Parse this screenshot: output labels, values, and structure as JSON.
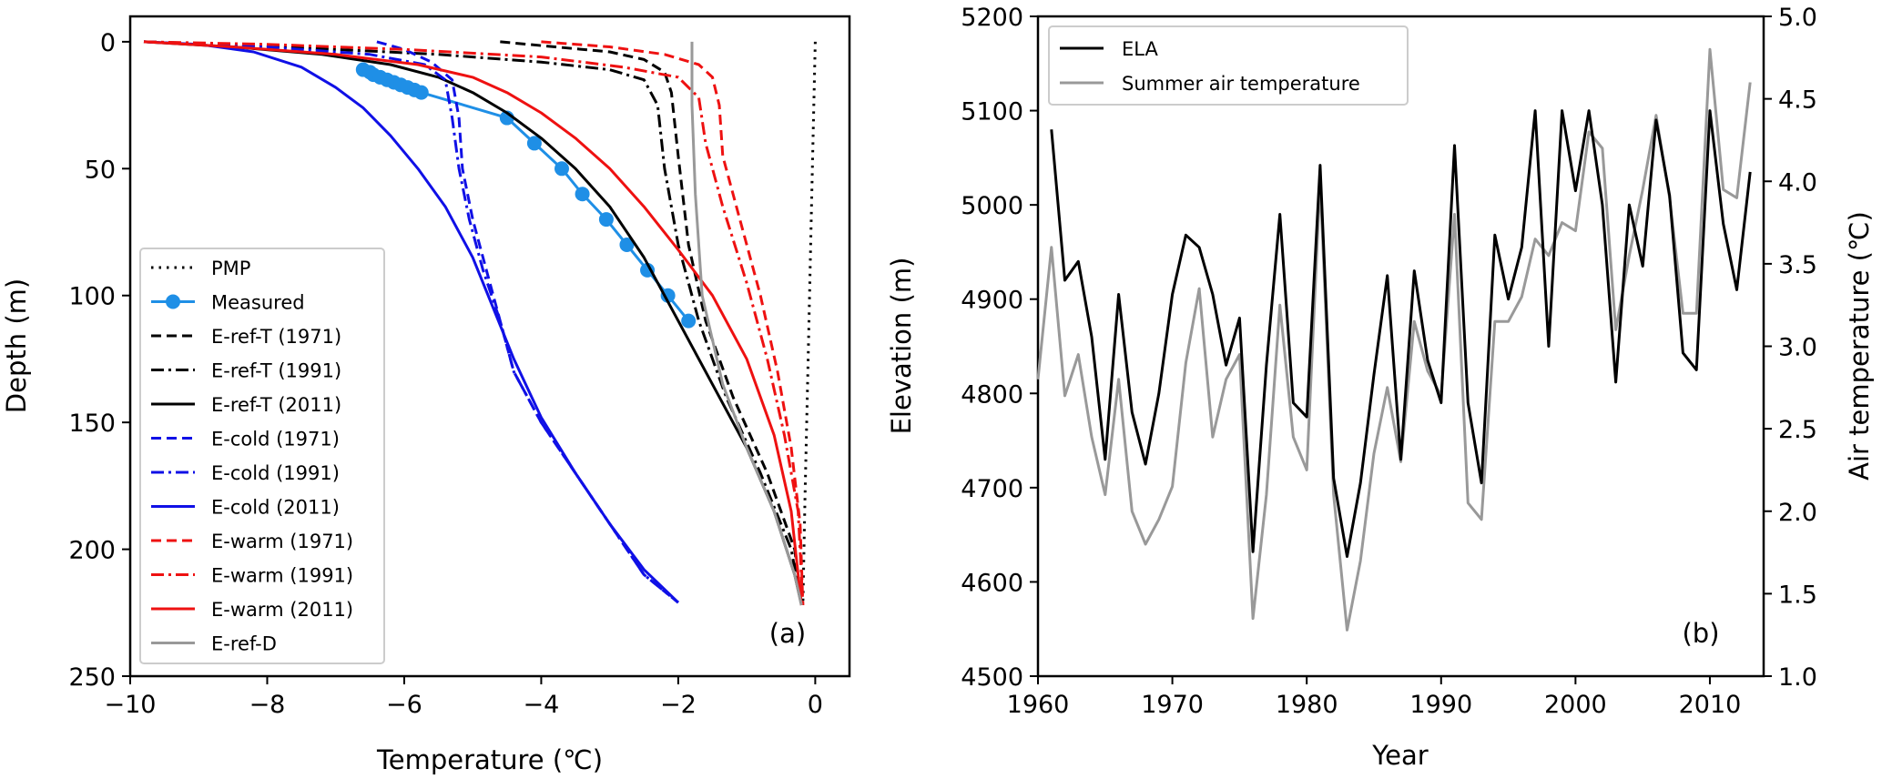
{
  "chart_data": [
    {
      "type": "line",
      "panel_label": "(a)",
      "xlabel": "Temperature (℃)",
      "ylabel": "Depth (m)",
      "xlim": [
        -10,
        0.5
      ],
      "ylim": [
        250,
        -10
      ],
      "xticks": [
        -10,
        -8,
        -6,
        -4,
        -2,
        0
      ],
      "xtick_labels": [
        "−10",
        "−8",
        "−6",
        "−4",
        "−2",
        "0"
      ],
      "yticks": [
        0,
        50,
        100,
        150,
        200,
        250
      ],
      "ytick_labels": [
        "0",
        "50",
        "100",
        "150",
        "200",
        "250"
      ],
      "legend_position": "lower-left",
      "series": [
        {
          "name": "PMP",
          "color": "#000000",
          "dash": "dotted",
          "marker": false,
          "points": [
            [
              0.0,
              0
            ],
            [
              -0.05,
              60
            ],
            [
              -0.1,
              120
            ],
            [
              -0.15,
              180
            ],
            [
              -0.18,
              222
            ]
          ]
        },
        {
          "name": "Measured",
          "color": "#1f8fe6",
          "dash": "solid",
          "marker": true,
          "points": [
            [
              -6.6,
              11
            ],
            [
              -6.5,
              12
            ],
            [
              -6.45,
              13
            ],
            [
              -6.35,
              14
            ],
            [
              -6.25,
              15
            ],
            [
              -6.15,
              16
            ],
            [
              -6.05,
              17
            ],
            [
              -5.95,
              18
            ],
            [
              -5.85,
              19
            ],
            [
              -5.75,
              20
            ],
            [
              -4.5,
              30
            ],
            [
              -4.1,
              40
            ],
            [
              -3.7,
              50
            ],
            [
              -3.4,
              60
            ],
            [
              -3.05,
              70
            ],
            [
              -2.75,
              80
            ],
            [
              -2.45,
              90
            ],
            [
              -2.15,
              100
            ],
            [
              -1.85,
              110
            ]
          ]
        },
        {
          "name": "E-ref-T (1971)",
          "color": "#000000",
          "dash": "dashed",
          "marker": false,
          "points": [
            [
              -4.6,
              0
            ],
            [
              -3.8,
              2
            ],
            [
              -3.0,
              4
            ],
            [
              -2.5,
              7
            ],
            [
              -2.2,
              12
            ],
            [
              -2.1,
              20
            ],
            [
              -2.0,
              45
            ],
            [
              -1.85,
              80
            ],
            [
              -1.6,
              110
            ],
            [
              -1.2,
              140
            ],
            [
              -0.7,
              170
            ],
            [
              -0.3,
              200
            ],
            [
              -0.2,
              222
            ]
          ]
        },
        {
          "name": "E-ref-T (1991)",
          "color": "#000000",
          "dash": "dashdot",
          "marker": false,
          "points": [
            [
              -9.8,
              0
            ],
            [
              -8.5,
              1
            ],
            [
              -7.0,
              3
            ],
            [
              -5.5,
              5
            ],
            [
              -4.0,
              8
            ],
            [
              -3.0,
              11
            ],
            [
              -2.5,
              15
            ],
            [
              -2.3,
              25
            ],
            [
              -2.2,
              50
            ],
            [
              -2.0,
              80
            ],
            [
              -1.7,
              110
            ],
            [
              -1.3,
              140
            ],
            [
              -0.8,
              170
            ],
            [
              -0.35,
              200
            ],
            [
              -0.2,
              222
            ]
          ]
        },
        {
          "name": "E-ref-T (2011)",
          "color": "#000000",
          "dash": "solid",
          "marker": false,
          "points": [
            [
              -9.8,
              0
            ],
            [
              -8.5,
              2
            ],
            [
              -7.2,
              5
            ],
            [
              -6.2,
              9
            ],
            [
              -5.5,
              14
            ],
            [
              -5.0,
              20
            ],
            [
              -4.5,
              28
            ],
            [
              -4.0,
              38
            ],
            [
              -3.5,
              50
            ],
            [
              -3.0,
              65
            ],
            [
              -2.5,
              85
            ],
            [
              -2.0,
              110
            ],
            [
              -1.5,
              135
            ],
            [
              -1.0,
              160
            ],
            [
              -0.6,
              185
            ],
            [
              -0.3,
              210
            ],
            [
              -0.2,
              222
            ]
          ]
        },
        {
          "name": "E-cold (1971)",
          "color": "#1010e6",
          "dash": "dashed",
          "marker": false,
          "points": [
            [
              -6.4,
              0
            ],
            [
              -6.0,
              3
            ],
            [
              -5.6,
              8
            ],
            [
              -5.3,
              15
            ],
            [
              -5.2,
              30
            ],
            [
              -5.15,
              50
            ],
            [
              -5.0,
              70
            ],
            [
              -4.8,
              90
            ],
            [
              -4.6,
              110
            ],
            [
              -4.4,
              130
            ],
            [
              -4.0,
              150
            ],
            [
              -3.5,
              170
            ],
            [
              -3.0,
              190
            ],
            [
              -2.5,
              210
            ],
            [
              -2.0,
              221
            ]
          ]
        },
        {
          "name": "E-cold (1991)",
          "color": "#1010e6",
          "dash": "dashdot",
          "marker": false,
          "points": [
            [
              -9.8,
              0
            ],
            [
              -8.0,
              2
            ],
            [
              -6.5,
              5
            ],
            [
              -5.7,
              9
            ],
            [
              -5.4,
              15
            ],
            [
              -5.3,
              30
            ],
            [
              -5.2,
              50
            ],
            [
              -5.05,
              70
            ],
            [
              -4.85,
              90
            ],
            [
              -4.6,
              110
            ],
            [
              -4.4,
              130
            ],
            [
              -4.0,
              150
            ],
            [
              -3.5,
              170
            ],
            [
              -3.0,
              190
            ],
            [
              -2.5,
              210
            ],
            [
              -2.0,
              221
            ]
          ]
        },
        {
          "name": "E-cold (2011)",
          "color": "#1010e6",
          "dash": "solid",
          "marker": false,
          "points": [
            [
              -9.8,
              0
            ],
            [
              -9.0,
              1
            ],
            [
              -8.2,
              4
            ],
            [
              -7.5,
              10
            ],
            [
              -7.0,
              18
            ],
            [
              -6.6,
              26
            ],
            [
              -6.2,
              37
            ],
            [
              -5.8,
              50
            ],
            [
              -5.4,
              65
            ],
            [
              -5.0,
              85
            ],
            [
              -4.7,
              105
            ],
            [
              -4.4,
              125
            ],
            [
              -4.0,
              148
            ],
            [
              -3.5,
              170
            ],
            [
              -3.0,
              190
            ],
            [
              -2.5,
              208
            ],
            [
              -2.0,
              221
            ]
          ]
        },
        {
          "name": "E-warm (1971)",
          "color": "#ee1111",
          "dash": "dashed",
          "marker": false,
          "points": [
            [
              -4.0,
              0
            ],
            [
              -3.0,
              2
            ],
            [
              -2.2,
              5
            ],
            [
              -1.7,
              9
            ],
            [
              -1.5,
              14
            ],
            [
              -1.4,
              25
            ],
            [
              -1.35,
              45
            ],
            [
              -1.1,
              70
            ],
            [
              -0.8,
              100
            ],
            [
              -0.55,
              130
            ],
            [
              -0.35,
              160
            ],
            [
              -0.22,
              190
            ],
            [
              -0.18,
              222
            ]
          ]
        },
        {
          "name": "E-warm (1991)",
          "color": "#ee1111",
          "dash": "dashdot",
          "marker": false,
          "points": [
            [
              -9.8,
              0
            ],
            [
              -8.0,
              1
            ],
            [
              -6.0,
              3
            ],
            [
              -4.0,
              6
            ],
            [
              -2.8,
              10
            ],
            [
              -2.0,
              14
            ],
            [
              -1.7,
              22
            ],
            [
              -1.6,
              40
            ],
            [
              -1.35,
              65
            ],
            [
              -1.0,
              95
            ],
            [
              -0.7,
              125
            ],
            [
              -0.45,
              155
            ],
            [
              -0.25,
              185
            ],
            [
              -0.18,
              222
            ]
          ]
        },
        {
          "name": "E-warm (2011)",
          "color": "#ee1111",
          "dash": "solid",
          "marker": false,
          "points": [
            [
              -9.8,
              0
            ],
            [
              -8.5,
              2
            ],
            [
              -7.0,
              5
            ],
            [
              -5.8,
              9
            ],
            [
              -5.0,
              14
            ],
            [
              -4.5,
              20
            ],
            [
              -4.0,
              28
            ],
            [
              -3.5,
              38
            ],
            [
              -3.0,
              50
            ],
            [
              -2.5,
              65
            ],
            [
              -2.0,
              82
            ],
            [
              -1.5,
              100
            ],
            [
              -1.0,
              125
            ],
            [
              -0.6,
              155
            ],
            [
              -0.35,
              185
            ],
            [
              -0.2,
              222
            ]
          ]
        },
        {
          "name": "E-ref-D",
          "color": "#999999",
          "dash": "solid",
          "marker": false,
          "points": [
            [
              -1.8,
              0
            ],
            [
              -1.8,
              25
            ],
            [
              -1.75,
              60
            ],
            [
              -1.65,
              100
            ],
            [
              -1.35,
              135
            ],
            [
              -1.0,
              160
            ],
            [
              -0.6,
              185
            ],
            [
              -0.3,
              210
            ],
            [
              -0.2,
              222
            ]
          ]
        }
      ]
    },
    {
      "type": "line",
      "panel_label": "(b)",
      "xlabel": "Year",
      "ylabel": "Elevation (m)",
      "ylabel_right": "Air temperature (℃)",
      "xlim": [
        1960,
        2014
      ],
      "ylim": [
        4500,
        5200
      ],
      "ylim_right": [
        1.0,
        5.0
      ],
      "xticks": [
        1960,
        1970,
        1980,
        1990,
        2000,
        2010
      ],
      "xtick_labels": [
        "1960",
        "1970",
        "1980",
        "1990",
        "2000",
        "2010"
      ],
      "yticks": [
        4500,
        4600,
        4700,
        4800,
        4900,
        5000,
        5100,
        5200
      ],
      "ytick_labels": [
        "4500",
        "4600",
        "4700",
        "4800",
        "4900",
        "5000",
        "5100",
        "5200"
      ],
      "yticks_right": [
        1.0,
        1.5,
        2.0,
        2.5,
        3.0,
        3.5,
        4.0,
        4.5,
        5.0
      ],
      "ytick_labels_right": [
        "1.0",
        "1.5",
        "2.0",
        "2.5",
        "3.0",
        "3.5",
        "4.0",
        "4.5",
        "5.0"
      ],
      "legend_position": "upper-left",
      "x": [
        1961,
        1962,
        1963,
        1964,
        1965,
        1966,
        1967,
        1968,
        1969,
        1970,
        1971,
        1972,
        1973,
        1974,
        1975,
        1976,
        1977,
        1978,
        1979,
        1980,
        1981,
        1982,
        1983,
        1984,
        1985,
        1986,
        1987,
        1988,
        1989,
        1990,
        1991,
        1992,
        1993,
        1994,
        1995,
        1996,
        1997,
        1998,
        1999,
        2000,
        2001,
        2002,
        2003,
        2004,
        2005,
        2006,
        2007,
        2008,
        2009,
        2010,
        2011,
        2012,
        2013
      ],
      "series": [
        {
          "name": "ELA",
          "color": "#000000",
          "axis": "left",
          "values": [
            5080,
            4920,
            4940,
            4860,
            4730,
            4905,
            4780,
            4725,
            4800,
            4905,
            4968,
            4955,
            4905,
            4830,
            4880,
            4632,
            4830,
            4990,
            4790,
            4775,
            5042,
            4710,
            4627,
            4705,
            4820,
            4925,
            4730,
            4930,
            4835,
            4790,
            5063,
            4790,
            4705,
            4968,
            4900,
            4955,
            5100,
            4850,
            5100,
            5015,
            5100,
            5000,
            4812,
            5000,
            4935,
            5090,
            5010,
            4843,
            4825,
            5100,
            4980,
            4910,
            5035
          ]
        },
        {
          "name": "Summer air temperature",
          "color": "#999999",
          "axis": "right",
          "x": [
            1960,
            1961,
            1962,
            1963,
            1964,
            1965,
            1966,
            1967,
            1968,
            1969,
            1970,
            1971,
            1972,
            1973,
            1974,
            1975,
            1976,
            1977,
            1978,
            1979,
            1980,
            1981,
            1982,
            1983,
            1984,
            1985,
            1986,
            1987,
            1988,
            1989,
            1990,
            1991,
            1992,
            1993,
            1994,
            1995,
            1996,
            1997,
            1998,
            1999,
            2000,
            2001,
            2002,
            2003,
            2004,
            2005,
            2006,
            2007,
            2008,
            2009,
            2010,
            2011,
            2012,
            2013
          ],
          "values": [
            2.8,
            3.6,
            2.7,
            2.95,
            2.45,
            2.1,
            2.8,
            2.0,
            1.8,
            1.95,
            2.15,
            2.9,
            3.35,
            2.45,
            2.8,
            2.95,
            1.35,
            2.1,
            3.25,
            2.45,
            2.25,
            4.0,
            2.1,
            1.28,
            1.7,
            2.35,
            2.75,
            2.3,
            3.15,
            2.85,
            2.7,
            3.8,
            2.05,
            1.95,
            3.15,
            3.15,
            3.3,
            3.65,
            3.55,
            3.75,
            3.7,
            4.3,
            4.2,
            3.1,
            3.55,
            3.95,
            4.4,
            3.9,
            3.2,
            3.2,
            4.8,
            3.95,
            3.9,
            4.6
          ]
        }
      ]
    }
  ]
}
